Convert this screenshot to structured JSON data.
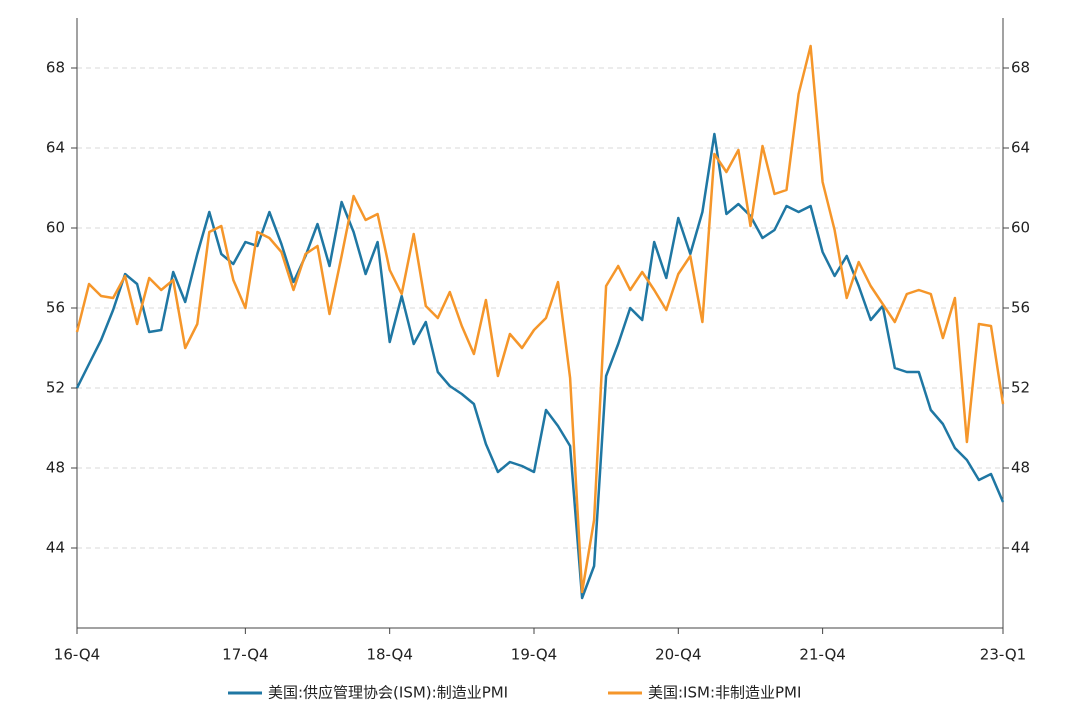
{
  "chart_data": {
    "type": "line",
    "categories": [
      "16-Q4",
      null,
      null,
      null,
      null,
      null,
      null,
      null,
      null,
      null,
      null,
      null,
      null,
      null,
      "17-Q4",
      null,
      null,
      null,
      null,
      null,
      null,
      null,
      null,
      null,
      null,
      null,
      "18-Q4",
      null,
      null,
      null,
      null,
      null,
      null,
      null,
      null,
      null,
      null,
      null,
      "19-Q4",
      null,
      null,
      null,
      null,
      null,
      null,
      null,
      null,
      null,
      null,
      null,
      "20-Q4",
      null,
      null,
      null,
      null,
      null,
      null,
      null,
      null,
      null,
      null,
      null,
      "21-Q4",
      null,
      null,
      null,
      null,
      null,
      null,
      null,
      null,
      null,
      null,
      null,
      null,
      null,
      null,
      "23-Q1"
    ],
    "series": [
      {
        "name": "美国:供应管理协会(ISM):制造业PMI",
        "color": "#1f77a3",
        "values": [
          52.0,
          53.2,
          54.4,
          55.9,
          57.7,
          57.2,
          54.8,
          54.9,
          57.8,
          56.3,
          58.7,
          60.8,
          58.7,
          58.2,
          59.3,
          59.1,
          60.8,
          59.2,
          57.3,
          58.6,
          60.2,
          58.1,
          61.3,
          59.8,
          57.7,
          59.3,
          54.3,
          56.6,
          54.2,
          55.3,
          52.8,
          52.1,
          51.7,
          51.2,
          49.2,
          47.8,
          48.3,
          48.1,
          47.8,
          50.9,
          50.1,
          49.1,
          41.5,
          43.1,
          52.6,
          54.2,
          56.0,
          55.4,
          59.3,
          57.5,
          60.5,
          58.7,
          60.8,
          64.7,
          60.7,
          61.2,
          60.6,
          59.5,
          59.9,
          61.1,
          60.8,
          61.1,
          58.8,
          57.6,
          58.6,
          57.1,
          55.4,
          56.1,
          53.0,
          52.8,
          52.8,
          50.9,
          50.2,
          49.0,
          48.4,
          47.4,
          47.7,
          46.3
        ]
      },
      {
        "name": "美国:ISM:非制造业PMI",
        "color": "#f5962a",
        "axis": "y2",
        "values": [
          54.8,
          57.2,
          56.6,
          56.5,
          57.6,
          55.2,
          57.5,
          56.9,
          57.4,
          54.0,
          55.2,
          59.8,
          60.1,
          57.4,
          56.0,
          59.8,
          59.5,
          58.8,
          56.9,
          58.7,
          59.1,
          55.7,
          58.6,
          61.6,
          60.4,
          60.7,
          57.9,
          56.7,
          59.7,
          56.1,
          55.5,
          56.8,
          55.1,
          53.7,
          56.4,
          52.6,
          54.7,
          54.0,
          54.9,
          55.5,
          57.3,
          52.5,
          41.8,
          45.4,
          57.1,
          58.1,
          56.9,
          57.8,
          56.9,
          55.9,
          57.7,
          58.6,
          55.3,
          63.7,
          62.8,
          63.9,
          60.1,
          64.1,
          61.7,
          61.9,
          66.7,
          69.1,
          62.3,
          59.9,
          56.5,
          58.3,
          57.1,
          56.2,
          55.3,
          56.7,
          56.9,
          56.7,
          54.5,
          56.5,
          49.3,
          55.2,
          55.1,
          51.2
        ]
      }
    ],
    "ylim": [
      40,
      70.5
    ],
    "yticks": [
      44,
      48,
      52,
      56,
      60,
      64,
      68
    ],
    "y2lim": [
      40,
      70.5
    ],
    "y2ticks": [
      44,
      48,
      52,
      56,
      60,
      64,
      68
    ],
    "grid": true,
    "legend": "bottom"
  }
}
